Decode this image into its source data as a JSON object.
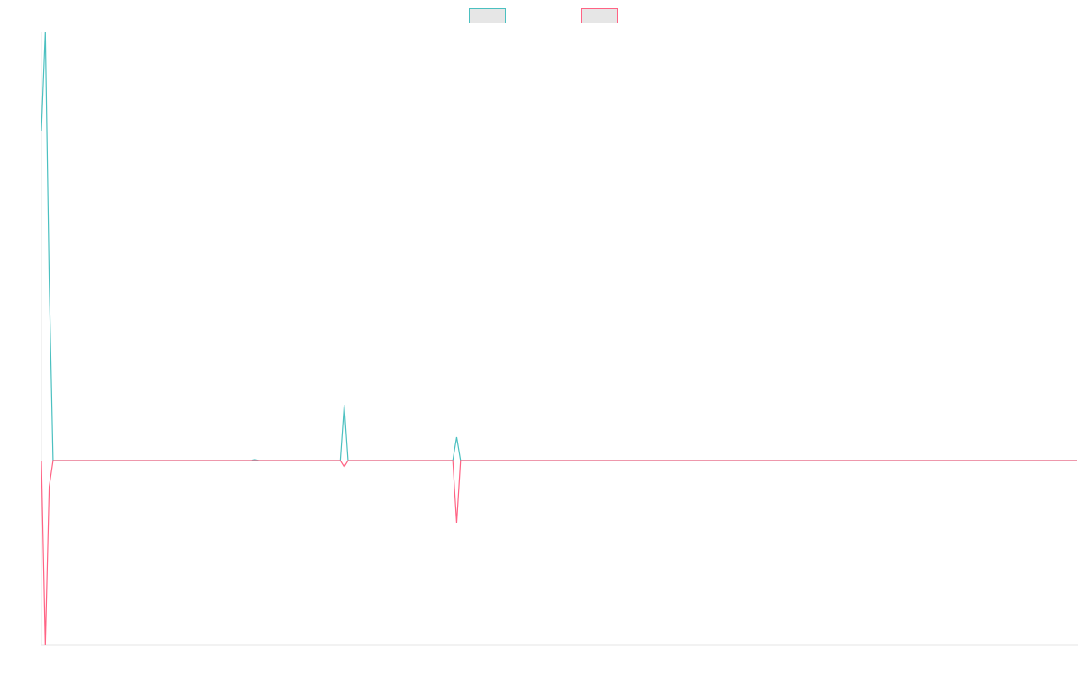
{
  "chart_data": {
    "type": "line",
    "x": [
      0,
      1,
      2,
      3,
      54,
      55,
      56,
      77,
      78,
      79,
      106,
      107,
      108,
      267
    ],
    "xlim": [
      0,
      267
    ],
    "ylim": [
      -205,
      475
    ],
    "series": [
      {
        "color": "#4bc0c0",
        "values": [
          366,
          475,
          200,
          0,
          0,
          1,
          0,
          0,
          62,
          0,
          0,
          26,
          0,
          0
        ]
      },
      {
        "color": "#ff6384",
        "values": [
          0,
          -205,
          -29,
          0,
          0,
          0,
          0,
          0,
          -7,
          0,
          0,
          -69,
          0,
          0
        ]
      }
    ],
    "legend": "top"
  }
}
